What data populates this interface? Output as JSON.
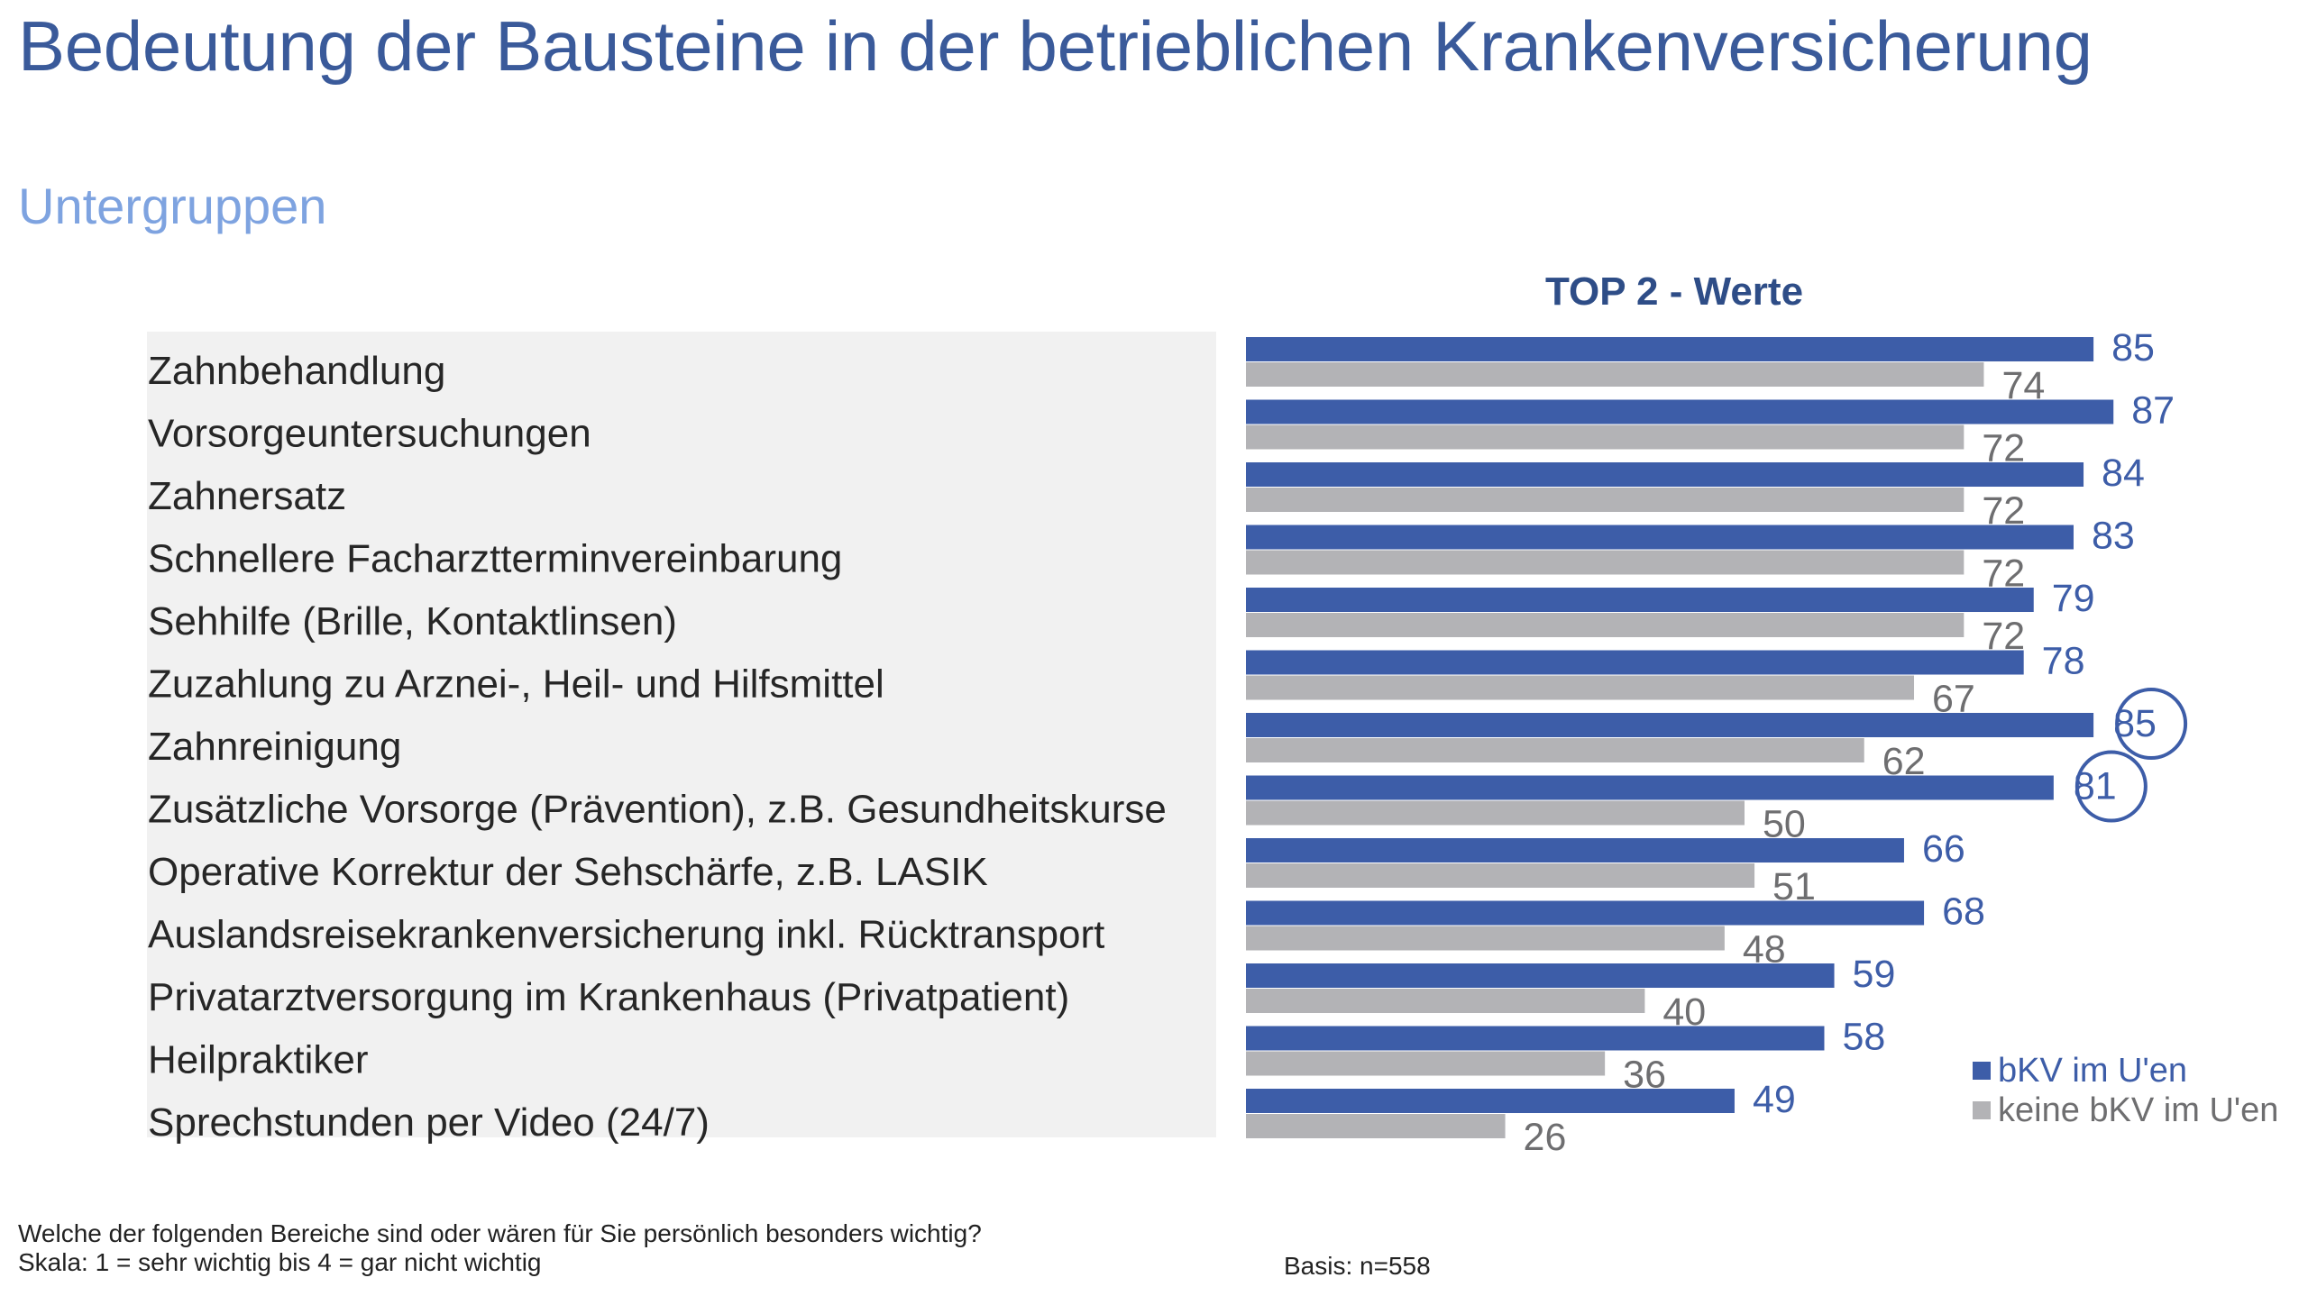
{
  "title": "Bedeutung der Bausteine in der betrieblichen Krankenversicherung",
  "subtitle": "Untergruppen",
  "footnote": {
    "line1": "Welche der folgenden Bereiche sind oder wären für Sie persönlich besonders wichtig?",
    "line2": "Skala: 1 = sehr wichtig bis 4 = gar nicht wichtig"
  },
  "basis": "Basis: n=558",
  "colors": {
    "bkv": "#3d5da8",
    "keine_bkv": "#b3b3b6",
    "label_panel": "#f1f1f1",
    "highlight_ring": "#3d5da8"
  },
  "chart_data": {
    "type": "bar",
    "orientation": "horizontal",
    "title": "TOP 2 - Werte",
    "categories": [
      "Zahnbehandlung",
      "Vorsorgeuntersuchungen",
      "Zahnersatz",
      "Schnellere Facharztterminvereinbarung",
      "Sehhilfe (Brille, Kontaktlinsen)",
      "Zuzahlung zu Arznei-, Heil- und Hilfsmittel",
      "Zahnreinigung",
      "Zusätzliche Vorsorge (Prävention), z.B. Gesundheitskurse",
      "Operative Korrektur der Sehschärfe, z.B. LASIK",
      "Auslandsreisekrankenversicherung inkl. Rücktransport",
      "Privatarztversorgung im Krankenhaus (Privatpatient)",
      "Heilpraktiker",
      "Sprechstunden per Video (24/7)"
    ],
    "series": [
      {
        "name": "bKV im U'en",
        "color": "#3d5da8",
        "values": [
          85,
          87,
          84,
          83,
          79,
          78,
          85,
          81,
          66,
          68,
          59,
          58,
          49
        ]
      },
      {
        "name": "keine bKV im U'en",
        "color": "#b3b3b6",
        "values": [
          74,
          72,
          72,
          72,
          72,
          67,
          62,
          50,
          51,
          48,
          40,
          36,
          26
        ]
      }
    ],
    "highlighted": [
      {
        "series": 0,
        "category": "Zahnreinigung"
      },
      {
        "series": 0,
        "category": "Zusätzliche Vorsorge (Prävention), z.B. Gesundheitskurse"
      }
    ],
    "xlim": [
      0,
      100
    ],
    "legend_position": "bottom-right",
    "grid": false
  }
}
